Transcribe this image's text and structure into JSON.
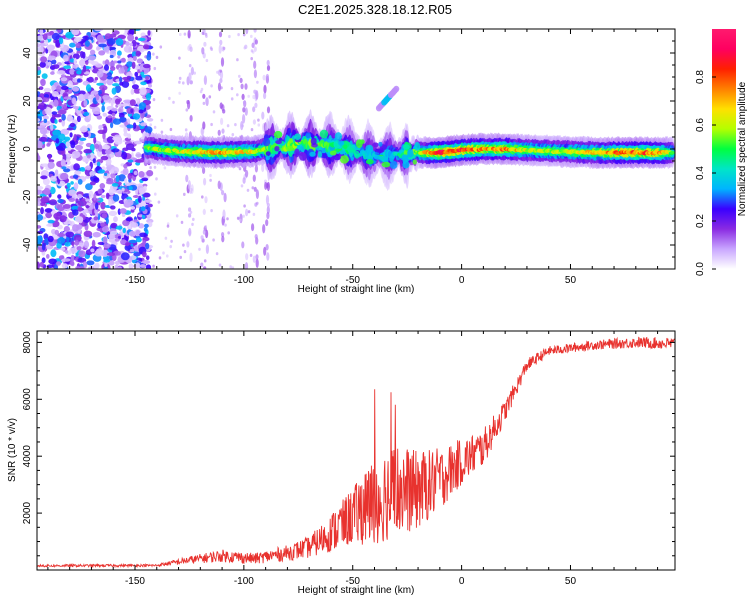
{
  "figure_title": "C2E1.2025.328.18.12.R05",
  "colors": {
    "snr_line": "#e8322e",
    "axis": "#000000",
    "frame": "#000000"
  },
  "chart_data": [
    {
      "id": "spectrogram",
      "type": "heatmap",
      "xlabel": "Height of straight line (km)",
      "ylabel": "Frequency (Hz)",
      "xlim": [
        -195,
        98
      ],
      "ylim": [
        -50,
        50
      ],
      "xticks": [
        -150,
        -100,
        -50,
        0,
        50
      ],
      "yticks": [
        -40,
        -20,
        0,
        20,
        40
      ],
      "colorbar": {
        "label": "Normalized spectral amplitude",
        "range": [
          0,
          1
        ],
        "ticks": [
          0.0,
          0.2,
          0.4,
          0.6,
          0.8
        ],
        "tick_labels": [
          "0.0",
          "0.2",
          "0.4",
          "0.6",
          "0.8"
        ],
        "colormap": [
          "#ffffff",
          "#c9a6ff",
          "#8a2be2",
          "#3a00ff",
          "#00b4ff",
          "#00e5c8",
          "#00ff40",
          "#b4ff00",
          "#ffe000",
          "#ff8000",
          "#ff2000",
          "#ff0060",
          "#ff1a6e"
        ]
      },
      "noise_region_km": [
        -195,
        -143
      ],
      "main_band": [
        {
          "x": -145,
          "f": 0.5,
          "amp": 0.55
        },
        {
          "x": -130,
          "f": -1.0,
          "amp": 0.6
        },
        {
          "x": -110,
          "f": -1.5,
          "amp": 0.72
        },
        {
          "x": -95,
          "f": -1.0,
          "amp": 0.62
        },
        {
          "x": -85,
          "f": 1.0,
          "amp": 0.5
        },
        {
          "x": -75,
          "f": 2.0,
          "amp": 0.55
        },
        {
          "x": -65,
          "f": 1.5,
          "amp": 0.5
        },
        {
          "x": -55,
          "f": 0.5,
          "amp": 0.45
        },
        {
          "x": -45,
          "f": -2.0,
          "amp": 0.4
        },
        {
          "x": -37,
          "f": -3.0,
          "amp": 0.35
        },
        {
          "x": -30,
          "f": -2.5,
          "amp": 0.4
        },
        {
          "x": -20,
          "f": -1.5,
          "amp": 0.55
        },
        {
          "x": -10,
          "f": -1.5,
          "amp": 0.85
        },
        {
          "x": 0,
          "f": -0.5,
          "amp": 0.8
        },
        {
          "x": 10,
          "f": 0.0,
          "amp": 0.72
        },
        {
          "x": 20,
          "f": 0.0,
          "amp": 0.75
        },
        {
          "x": 30,
          "f": -0.5,
          "amp": 0.6
        },
        {
          "x": 45,
          "f": -1.0,
          "amp": 0.6
        },
        {
          "x": 60,
          "f": -1.5,
          "amp": 0.65
        },
        {
          "x": 75,
          "f": -1.5,
          "amp": 0.78
        },
        {
          "x": 90,
          "f": -1.5,
          "amp": 0.75
        },
        {
          "x": 97,
          "f": -1.5,
          "amp": 0.55
        }
      ],
      "secondary_feature": {
        "x": [
          -38,
          -30
        ],
        "f": [
          17,
          25
        ],
        "amp": 0.35
      }
    },
    {
      "id": "snr",
      "type": "line",
      "xlabel": "Height of straight line (km)",
      "ylabel": "SNR (10 * v/v)",
      "xlim": [
        -195,
        98
      ],
      "ylim": [
        0,
        8400
      ],
      "xticks": [
        -150,
        -100,
        -50,
        0,
        50
      ],
      "yticks": [
        2000,
        4000,
        6000,
        8000
      ],
      "envelope": [
        {
          "x": -195,
          "mean": 150,
          "spread": 80
        },
        {
          "x": -140,
          "mean": 160,
          "spread": 80
        },
        {
          "x": -125,
          "mean": 350,
          "spread": 250
        },
        {
          "x": -110,
          "mean": 500,
          "spread": 400
        },
        {
          "x": -95,
          "mean": 400,
          "spread": 350
        },
        {
          "x": -80,
          "mean": 600,
          "spread": 500
        },
        {
          "x": -70,
          "mean": 800,
          "spread": 700
        },
        {
          "x": -60,
          "mean": 1300,
          "spread": 1200
        },
        {
          "x": -50,
          "mean": 1900,
          "spread": 1800
        },
        {
          "x": -40,
          "mean": 2400,
          "spread": 2800
        },
        {
          "x": -30,
          "mean": 2800,
          "spread": 3000
        },
        {
          "x": -20,
          "mean": 2800,
          "spread": 2500
        },
        {
          "x": -10,
          "mean": 3200,
          "spread": 2000
        },
        {
          "x": 0,
          "mean": 3800,
          "spread": 1500
        },
        {
          "x": 10,
          "mean": 4300,
          "spread": 1200
        },
        {
          "x": 20,
          "mean": 5600,
          "spread": 700
        },
        {
          "x": 30,
          "mean": 7200,
          "spread": 400
        },
        {
          "x": 40,
          "mean": 7700,
          "spread": 300
        },
        {
          "x": 60,
          "mean": 7900,
          "spread": 300
        },
        {
          "x": 80,
          "mean": 8000,
          "spread": 350
        },
        {
          "x": 98,
          "mean": 7950,
          "spread": 400
        }
      ]
    }
  ]
}
